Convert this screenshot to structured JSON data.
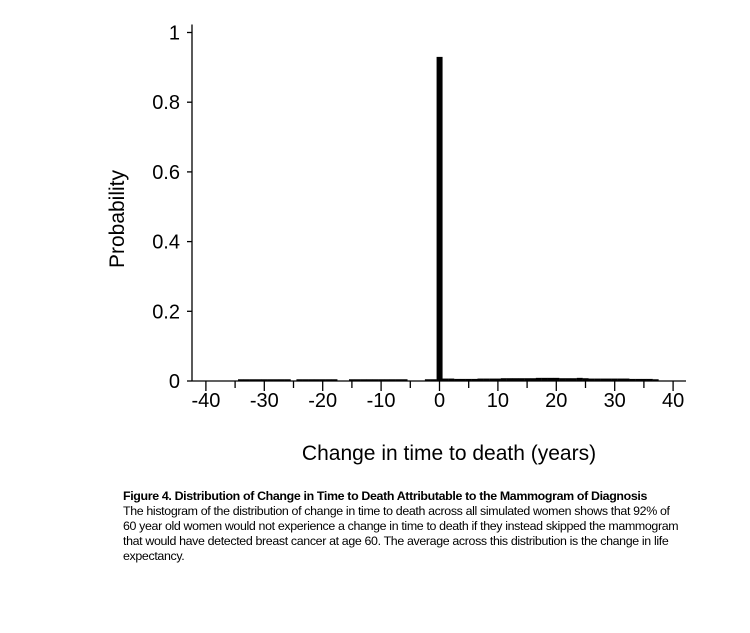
{
  "chart_data": {
    "type": "bar",
    "xlabel": "Change in time to death (years)",
    "ylabel": "Probability",
    "xlim": [
      -42,
      42
    ],
    "ylim": [
      0,
      1
    ],
    "xticks": [
      -40,
      -30,
      -20,
      -10,
      0,
      10,
      20,
      30,
      40
    ],
    "yticks": [
      0,
      0.2,
      0.4,
      0.6,
      0.8,
      1
    ],
    "ytick_labels": [
      "0",
      "0.2",
      "0.4",
      "0.6",
      "0.8",
      "1"
    ],
    "bar_color": "#000000",
    "bin_width": 1,
    "bars": [
      {
        "x": -34,
        "y": 0.005
      },
      {
        "x": -33,
        "y": 0.005
      },
      {
        "x": -32,
        "y": 0.005
      },
      {
        "x": -31,
        "y": 0.005
      },
      {
        "x": -30,
        "y": 0.005
      },
      {
        "x": -29,
        "y": 0.005
      },
      {
        "x": -28,
        "y": 0.005
      },
      {
        "x": -27,
        "y": 0.005
      },
      {
        "x": -26,
        "y": 0.005
      },
      {
        "x": -24,
        "y": 0.005
      },
      {
        "x": -23,
        "y": 0.005
      },
      {
        "x": -22,
        "y": 0.005
      },
      {
        "x": -21,
        "y": 0.005
      },
      {
        "x": -20,
        "y": 0.005
      },
      {
        "x": -19,
        "y": 0.005
      },
      {
        "x": -18,
        "y": 0.005
      },
      {
        "x": -15,
        "y": 0.005
      },
      {
        "x": -14,
        "y": 0.005
      },
      {
        "x": -13,
        "y": 0.005
      },
      {
        "x": -12,
        "y": 0.005
      },
      {
        "x": -11,
        "y": 0.005
      },
      {
        "x": -10,
        "y": 0.005
      },
      {
        "x": -9,
        "y": 0.005
      },
      {
        "x": -8,
        "y": 0.005
      },
      {
        "x": -7,
        "y": 0.005
      },
      {
        "x": -6,
        "y": 0.005
      },
      {
        "x": -2,
        "y": 0.005
      },
      {
        "x": -1,
        "y": 0.005
      },
      {
        "x": 0,
        "y": 0.93
      },
      {
        "x": 1,
        "y": 0.007
      },
      {
        "x": 2,
        "y": 0.007
      },
      {
        "x": 3,
        "y": 0.006
      },
      {
        "x": 4,
        "y": 0.006
      },
      {
        "x": 5,
        "y": 0.006
      },
      {
        "x": 6,
        "y": 0.006
      },
      {
        "x": 7,
        "y": 0.007
      },
      {
        "x": 8,
        "y": 0.007
      },
      {
        "x": 9,
        "y": 0.007
      },
      {
        "x": 10,
        "y": 0.007
      },
      {
        "x": 11,
        "y": 0.008
      },
      {
        "x": 12,
        "y": 0.008
      },
      {
        "x": 13,
        "y": 0.008
      },
      {
        "x": 14,
        "y": 0.008
      },
      {
        "x": 15,
        "y": 0.008
      },
      {
        "x": 16,
        "y": 0.008
      },
      {
        "x": 17,
        "y": 0.009
      },
      {
        "x": 18,
        "y": 0.009
      },
      {
        "x": 19,
        "y": 0.009
      },
      {
        "x": 20,
        "y": 0.009
      },
      {
        "x": 21,
        "y": 0.008
      },
      {
        "x": 22,
        "y": 0.008
      },
      {
        "x": 23,
        "y": 0.008
      },
      {
        "x": 24,
        "y": 0.009
      },
      {
        "x": 25,
        "y": 0.008
      },
      {
        "x": 26,
        "y": 0.007
      },
      {
        "x": 27,
        "y": 0.007
      },
      {
        "x": 28,
        "y": 0.007
      },
      {
        "x": 29,
        "y": 0.007
      },
      {
        "x": 30,
        "y": 0.007
      },
      {
        "x": 31,
        "y": 0.007
      },
      {
        "x": 32,
        "y": 0.007
      },
      {
        "x": 33,
        "y": 0.006
      },
      {
        "x": 34,
        "y": 0.006
      },
      {
        "x": 35,
        "y": 0.006
      },
      {
        "x": 36,
        "y": 0.006
      },
      {
        "x": 37,
        "y": 0.005
      }
    ]
  },
  "caption": {
    "title": "Figure 4. Distribution of Change in Time to Death Attributable to the Mammogram of Diagnosis",
    "body": "The histogram of the distribution of change in time to death across all simulated women shows that 92% of 60 year old women would not experience a change in time to death if they instead skipped the mammogram that would have detected breast cancer at age 60. The average across this distribution is the change in life expectancy."
  }
}
